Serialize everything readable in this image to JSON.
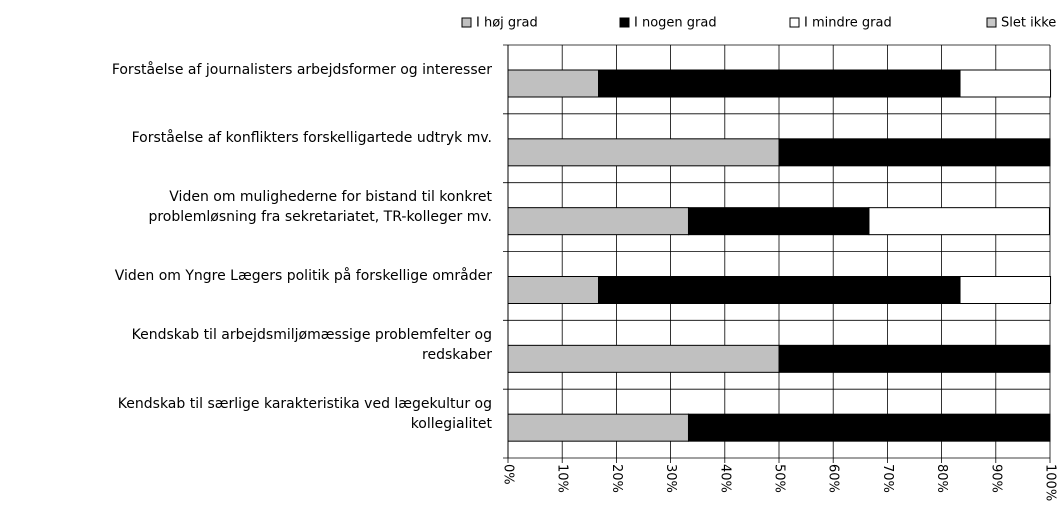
{
  "chart_data": {
    "type": "stacked-bar-horizontal",
    "categories": [
      "Forståelse af journalisters arbejdsformer og interesser",
      "Forståelse af konflikters forskelligartede udtryk mv.",
      "Viden om mulighederne for bistand til konkret\nproblemløsning fra sekretariatet, TR-kolleger mv.",
      "Viden om Yngre Lægers politik på forskellige områder",
      "Kendskab til arbejdsmiljømæssige problemfelter og\nredskaber",
      "Kendskab til særlige karakteristika ved lægekultur og\nkollegialitet"
    ],
    "series": [
      {
        "name": "I høj grad",
        "color": "#c0c0c0",
        "values": [
          16.7,
          50,
          33.3,
          16.7,
          50,
          33.3
        ]
      },
      {
        "name": "I nogen grad",
        "color": "#000000",
        "values": [
          66.7,
          50,
          33.3,
          66.7,
          50,
          66.7
        ]
      },
      {
        "name": "I mindre grad",
        "color": "#ffffff",
        "values": [
          16.7,
          0,
          33.3,
          16.7,
          0,
          0
        ]
      },
      {
        "name": "Slet ikke",
        "color": "#c8c8c8",
        "values": [
          0,
          0,
          0,
          0,
          0,
          0
        ]
      }
    ],
    "xlim": [
      0,
      100
    ],
    "xticks": [
      {
        "value": 0,
        "label": "0%"
      },
      {
        "value": 10,
        "label": "10%"
      },
      {
        "value": 20,
        "label": "20%"
      },
      {
        "value": 30,
        "label": "30%"
      },
      {
        "value": 40,
        "label": "40%"
      },
      {
        "value": 50,
        "label": "50%"
      },
      {
        "value": 60,
        "label": "60%"
      },
      {
        "value": 70,
        "label": "70%"
      },
      {
        "value": 80,
        "label": "80%"
      },
      {
        "value": 90,
        "label": "90%"
      },
      {
        "value": 100,
        "label": "100%"
      }
    ],
    "grid": true,
    "legend": "top"
  }
}
